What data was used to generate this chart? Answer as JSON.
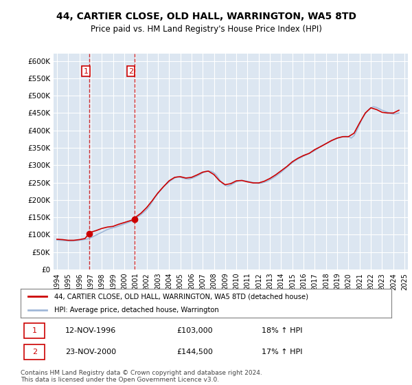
{
  "title": "44, CARTIER CLOSE, OLD HALL, WARRINGTON, WA5 8TD",
  "subtitle": "Price paid vs. HM Land Registry's House Price Index (HPI)",
  "title_fontsize": 11,
  "subtitle_fontsize": 9,
  "ylabel_ticks": [
    "£0",
    "£50K",
    "£100K",
    "£150K",
    "£200K",
    "£250K",
    "£300K",
    "£350K",
    "£400K",
    "£450K",
    "£500K",
    "£550K",
    "£600K"
  ],
  "ytick_values": [
    0,
    50000,
    100000,
    150000,
    200000,
    250000,
    300000,
    350000,
    400000,
    450000,
    500000,
    550000,
    600000
  ],
  "ylim": [
    0,
    620000
  ],
  "background_color": "#ffffff",
  "plot_bg_color": "#dce6f1",
  "grid_color": "#ffffff",
  "hpi_color": "#a0b8d8",
  "price_color": "#cc0000",
  "vline_color": "#cc0000",
  "marker_color": "#cc0000",
  "legend_label_price": "44, CARTIER CLOSE, OLD HALL, WARRINGTON, WA5 8TD (detached house)",
  "legend_label_hpi": "HPI: Average price, detached house, Warrington",
  "transaction1_label": "1",
  "transaction1_date": "12-NOV-1996",
  "transaction1_price": "£103,000",
  "transaction1_hpi": "18% ↑ HPI",
  "transaction1_year": 1996.87,
  "transaction1_value": 103000,
  "transaction2_label": "2",
  "transaction2_date": "23-NOV-2000",
  "transaction2_price": "£144,500",
  "transaction2_hpi": "17% ↑ HPI",
  "transaction2_year": 2000.9,
  "transaction2_value": 144500,
  "copyright_text": "Contains HM Land Registry data © Crown copyright and database right 2024.\nThis data is licensed under the Open Government Licence v3.0.",
  "hpi_data_x": [
    1994.0,
    1994.25,
    1994.5,
    1994.75,
    1995.0,
    1995.25,
    1995.5,
    1995.75,
    1996.0,
    1996.25,
    1996.5,
    1996.75,
    1997.0,
    1997.25,
    1997.5,
    1997.75,
    1998.0,
    1998.25,
    1998.5,
    1998.75,
    1999.0,
    1999.25,
    1999.5,
    1999.75,
    2000.0,
    2000.25,
    2000.5,
    2000.75,
    2001.0,
    2001.25,
    2001.5,
    2001.75,
    2002.0,
    2002.25,
    2002.5,
    2002.75,
    2003.0,
    2003.25,
    2003.5,
    2003.75,
    2004.0,
    2004.25,
    2004.5,
    2004.75,
    2005.0,
    2005.25,
    2005.5,
    2005.75,
    2006.0,
    2006.25,
    2006.5,
    2006.75,
    2007.0,
    2007.25,
    2007.5,
    2007.75,
    2008.0,
    2008.25,
    2008.5,
    2008.75,
    2009.0,
    2009.25,
    2009.5,
    2009.75,
    2010.0,
    2010.25,
    2010.5,
    2010.75,
    2011.0,
    2011.25,
    2011.5,
    2011.75,
    2012.0,
    2012.25,
    2012.5,
    2012.75,
    2013.0,
    2013.25,
    2013.5,
    2013.75,
    2014.0,
    2014.25,
    2014.5,
    2014.75,
    2015.0,
    2015.25,
    2015.5,
    2015.75,
    2016.0,
    2016.25,
    2016.5,
    2016.75,
    2017.0,
    2017.25,
    2017.5,
    2017.75,
    2018.0,
    2018.25,
    2018.5,
    2018.75,
    2019.0,
    2019.25,
    2019.5,
    2019.75,
    2020.0,
    2020.25,
    2020.5,
    2020.75,
    2021.0,
    2021.25,
    2021.5,
    2021.75,
    2022.0,
    2022.25,
    2022.5,
    2022.75,
    2023.0,
    2023.25,
    2023.5,
    2023.75,
    2024.0,
    2024.25,
    2024.5
  ],
  "hpi_data_y": [
    85000,
    84000,
    83500,
    83000,
    82500,
    82000,
    82500,
    83000,
    84000,
    85000,
    86500,
    88000,
    91000,
    95000,
    99000,
    103000,
    107000,
    111000,
    115000,
    118000,
    120000,
    122000,
    125000,
    128000,
    131000,
    134000,
    137000,
    140000,
    145000,
    152000,
    158000,
    165000,
    172000,
    182000,
    195000,
    208000,
    218000,
    228000,
    238000,
    245000,
    252000,
    258000,
    263000,
    267000,
    265000,
    263000,
    261000,
    260000,
    262000,
    265000,
    269000,
    273000,
    278000,
    282000,
    283000,
    282000,
    278000,
    270000,
    258000,
    248000,
    242000,
    240000,
    243000,
    248000,
    252000,
    255000,
    256000,
    255000,
    254000,
    252000,
    250000,
    249000,
    248000,
    249000,
    251000,
    254000,
    258000,
    263000,
    268000,
    274000,
    280000,
    287000,
    294000,
    301000,
    307000,
    313000,
    318000,
    322000,
    326000,
    330000,
    334000,
    338000,
    342000,
    348000,
    354000,
    358000,
    362000,
    366000,
    370000,
    374000,
    377000,
    380000,
    382000,
    383000,
    382000,
    378000,
    385000,
    400000,
    418000,
    435000,
    448000,
    458000,
    465000,
    468000,
    466000,
    462000,
    458000,
    455000,
    452000,
    449000,
    447000,
    448000,
    450000
  ],
  "price_data_x": [
    1994.0,
    1994.5,
    1995.0,
    1995.5,
    1996.0,
    1996.5,
    1996.87,
    1997.0,
    1997.5,
    1998.0,
    1998.5,
    1999.0,
    1999.5,
    2000.0,
    2000.5,
    2000.9,
    2001.0,
    2001.5,
    2002.0,
    2002.5,
    2003.0,
    2003.5,
    2004.0,
    2004.5,
    2005.0,
    2005.5,
    2006.0,
    2006.5,
    2007.0,
    2007.5,
    2008.0,
    2008.5,
    2009.0,
    2009.5,
    2010.0,
    2010.5,
    2011.0,
    2011.5,
    2012.0,
    2012.5,
    2013.0,
    2013.5,
    2014.0,
    2014.5,
    2015.0,
    2015.5,
    2016.0,
    2016.5,
    2017.0,
    2017.5,
    2018.0,
    2018.5,
    2019.0,
    2019.5,
    2020.0,
    2020.5,
    2021.0,
    2021.5,
    2022.0,
    2022.5,
    2023.0,
    2023.5,
    2024.0,
    2024.5
  ],
  "price_data_y": [
    87000,
    86000,
    84000,
    84000,
    86000,
    89000,
    103000,
    107000,
    112000,
    118000,
    122000,
    124000,
    130000,
    135000,
    140000,
    144500,
    150000,
    162000,
    178000,
    198000,
    220000,
    238000,
    255000,
    265000,
    267000,
    263000,
    265000,
    272000,
    280000,
    283000,
    273000,
    255000,
    244000,
    247000,
    255000,
    256000,
    252000,
    249000,
    249000,
    254000,
    262000,
    272000,
    284000,
    296000,
    310000,
    320000,
    328000,
    334000,
    345000,
    353000,
    362000,
    371000,
    378000,
    382000,
    382000,
    392000,
    422000,
    450000,
    465000,
    460000,
    452000,
    450000,
    450000,
    458000
  ],
  "xtick_years": [
    1994,
    1995,
    1996,
    1997,
    1998,
    1999,
    2000,
    2001,
    2002,
    2003,
    2004,
    2005,
    2006,
    2007,
    2008,
    2009,
    2010,
    2011,
    2012,
    2013,
    2014,
    2015,
    2016,
    2017,
    2018,
    2019,
    2020,
    2021,
    2022,
    2023,
    2024,
    2025
  ]
}
